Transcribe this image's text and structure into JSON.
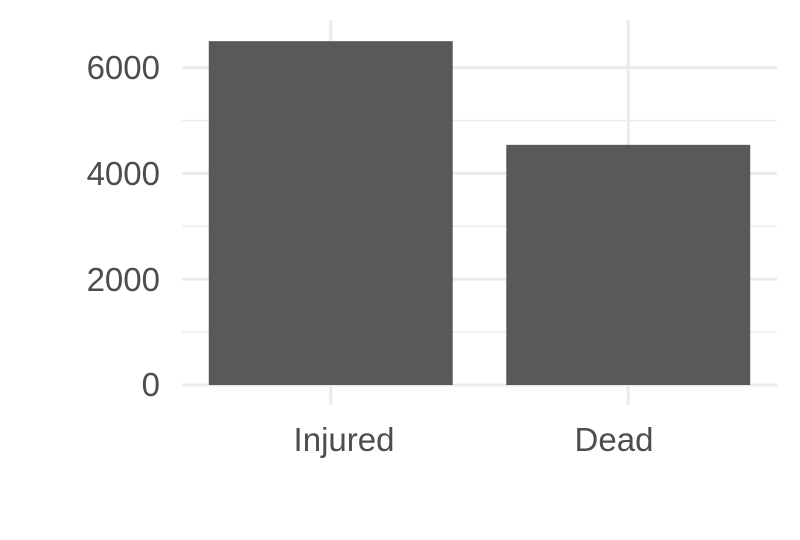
{
  "chart_data": {
    "type": "bar",
    "categories": [
      "Injured",
      "Dead"
    ],
    "values": [
      6500,
      4540
    ],
    "ylim": [
      0,
      6500
    ],
    "yticks": [
      0,
      2000,
      4000,
      6000
    ],
    "yticks_labels": [
      "0",
      "2000",
      "4000",
      "6000"
    ],
    "grid": true,
    "legend": "none",
    "bar_color": "#595959",
    "grid_color": "#ebebeb",
    "text_color": "#4d4d4d"
  }
}
